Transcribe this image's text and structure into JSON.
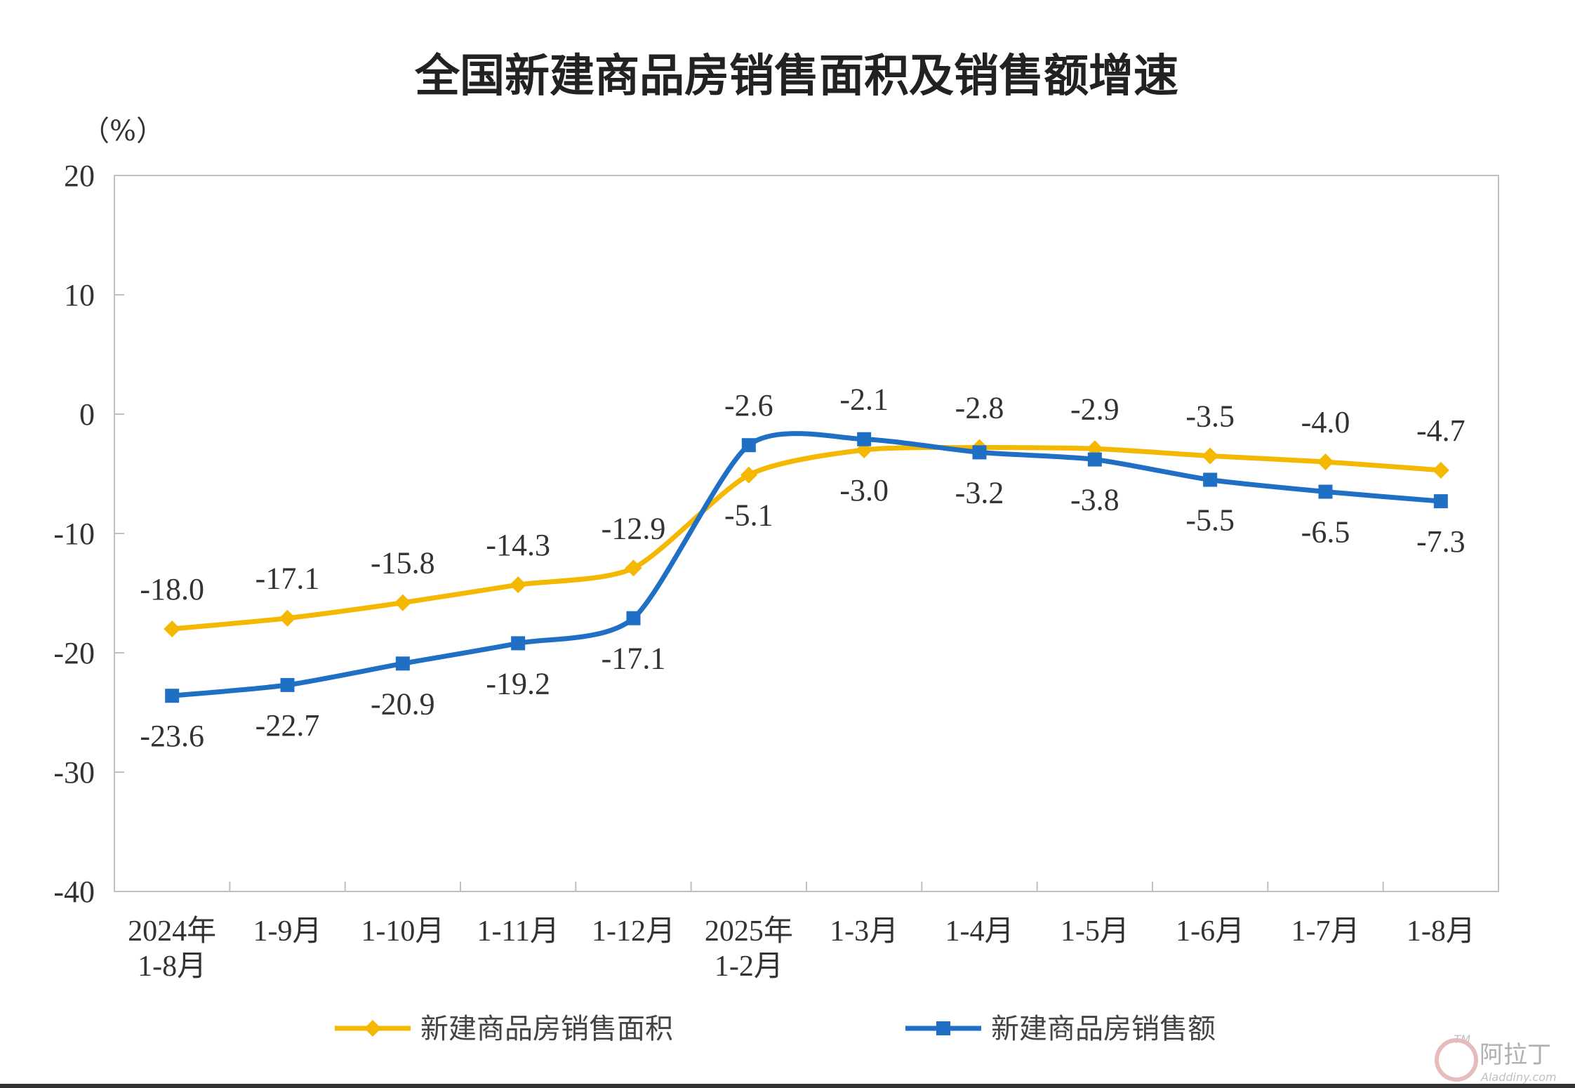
{
  "chart_data": {
    "type": "line",
    "title": "全国新建商品房销售面积及销售额增速",
    "unit_label": "（%）",
    "xlabel": "",
    "ylabel": "",
    "ylim": [
      -40,
      20
    ],
    "yticks": [
      20,
      10,
      0,
      -10,
      -20,
      -30,
      -40
    ],
    "grid": false,
    "legend_position": "bottom",
    "categories": [
      [
        "2024年",
        "1-8月"
      ],
      [
        "1-9月"
      ],
      [
        "1-10月"
      ],
      [
        "1-11月"
      ],
      [
        "1-12月"
      ],
      [
        "2025年",
        "1-2月"
      ],
      [
        "1-3月"
      ],
      [
        "1-4月"
      ],
      [
        "1-5月"
      ],
      [
        "1-6月"
      ],
      [
        "1-7月"
      ],
      [
        "1-8月"
      ]
    ],
    "series": [
      {
        "name": "新建商品房销售面积",
        "color": "#F5B800",
        "marker": "diamond",
        "values": [
          -18.0,
          -17.1,
          -15.8,
          -14.3,
          -12.9,
          -5.1,
          -3.0,
          -2.8,
          -2.9,
          -3.5,
          -4.0,
          -4.7
        ],
        "labels": [
          "-18.0",
          "-17.1",
          "-15.8",
          "-14.3",
          "-12.9",
          "-5.1",
          "-3.0",
          "-2.8",
          "-2.9",
          "-3.5",
          "-4.0",
          "-4.7"
        ]
      },
      {
        "name": "新建商品房销售额",
        "color": "#1F6FC4",
        "marker": "square",
        "values": [
          -23.6,
          -22.7,
          -20.9,
          -19.2,
          -17.1,
          -2.6,
          -2.1,
          -3.2,
          -3.8,
          -5.5,
          -6.5,
          -7.3
        ],
        "labels": [
          "-23.6",
          "-22.7",
          "-20.9",
          "-19.2",
          "-17.1",
          "-2.6",
          "-2.1",
          "-3.2",
          "-3.8",
          "-5.5",
          "-6.5",
          "-7.3"
        ]
      }
    ]
  },
  "watermark": {
    "text": "阿拉丁",
    "sub": "Aladdiny.com",
    "tm": "TM"
  }
}
